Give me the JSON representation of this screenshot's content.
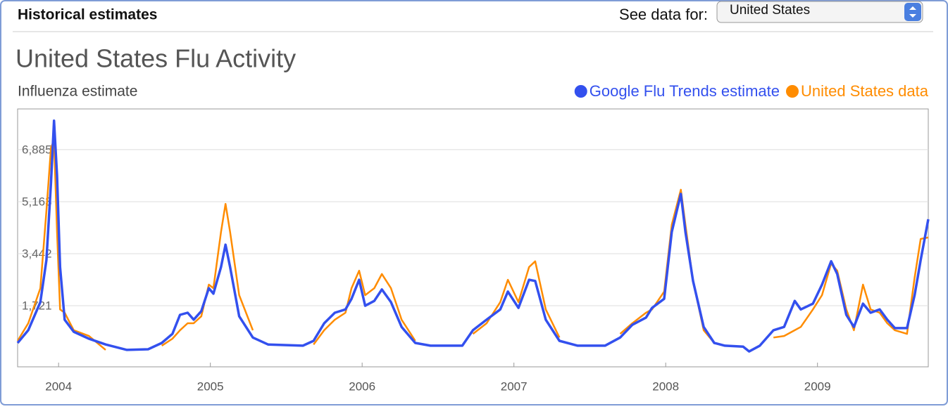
{
  "header": {
    "title": "Historical estimates",
    "see_data_label": "See data for:",
    "selected_region": "United States"
  },
  "chart_data": {
    "type": "line",
    "title": "United States Flu Activity",
    "y_label": "Influenza estimate",
    "x": [
      2003.73,
      2003.8,
      2003.88,
      2003.92,
      2003.95,
      2003.97,
      2003.99,
      2004.01,
      2004.04,
      2004.1,
      2004.2,
      2004.31,
      2004.45,
      2004.59,
      2004.68,
      2004.75,
      2004.8,
      2004.85,
      2004.89,
      2004.94,
      2004.99,
      2005.02,
      2005.07,
      2005.1,
      2005.13,
      2005.19,
      2005.28,
      2005.38,
      2005.61,
      2005.68,
      2005.75,
      2005.82,
      2005.89,
      2005.93,
      2005.98,
      2006.02,
      2006.08,
      2006.13,
      2006.19,
      2006.26,
      2006.35,
      2006.45,
      2006.66,
      2006.73,
      2006.82,
      2006.91,
      2006.96,
      2007.03,
      2007.1,
      2007.14,
      2007.21,
      2007.3,
      2007.42,
      2007.6,
      2007.7,
      2007.78,
      2007.87,
      2007.91,
      2007.99,
      2008.04,
      2008.1,
      2008.13,
      2008.18,
      2008.25,
      2008.32,
      2008.39,
      2008.51,
      2008.55,
      2008.62,
      2008.71,
      2008.78,
      2008.85,
      2008.89,
      2008.97,
      2009.03,
      2009.09,
      2009.13,
      2009.19,
      2009.24,
      2009.3,
      2009.35,
      2009.41,
      2009.46,
      2009.51,
      2009.59,
      2009.64,
      2009.68,
      2009.73
    ],
    "series": [
      {
        "name": "Google Flu Trends estimate",
        "color": "#3350ee",
        "values": [
          490,
          910,
          1840,
          3230,
          5790,
          7840,
          6020,
          3000,
          1260,
          860,
          630,
          440,
          260,
          280,
          490,
          790,
          1420,
          1490,
          1260,
          1540,
          2300,
          2120,
          3000,
          3740,
          3000,
          1370,
          670,
          440,
          400,
          560,
          1140,
          1490,
          1600,
          1950,
          2580,
          1720,
          1880,
          2260,
          1840,
          1020,
          490,
          400,
          400,
          910,
          1260,
          1600,
          2190,
          1650,
          2580,
          2540,
          1260,
          560,
          400,
          400,
          670,
          1090,
          1330,
          1650,
          1950,
          4160,
          5420,
          4160,
          2540,
          1020,
          490,
          400,
          370,
          210,
          400,
          910,
          1020,
          1880,
          1600,
          1790,
          2420,
          3190,
          2770,
          1420,
          1020,
          1790,
          1490,
          1600,
          1260,
          980,
          980,
          2070,
          3230,
          4580
        ]
      },
      {
        "name": "United States data",
        "color": "#ff8c00",
        "values": [
          560,
          1140,
          2300,
          4860,
          6950,
          7190,
          4160,
          1600,
          1490,
          910,
          720,
          260,
          null,
          null,
          400,
          630,
          910,
          1140,
          1140,
          1370,
          2420,
          2300,
          4160,
          5090,
          4160,
          2070,
          910,
          null,
          null,
          440,
          910,
          1260,
          1490,
          2300,
          2880,
          2070,
          2300,
          2770,
          2300,
          1260,
          560,
          null,
          null,
          790,
          1140,
          1840,
          2580,
          1840,
          3000,
          3190,
          1600,
          670,
          null,
          null,
          790,
          1140,
          1490,
          1600,
          2190,
          4400,
          5560,
          4400,
          2540,
          910,
          490,
          null,
          null,
          null,
          null,
          670,
          720,
          910,
          1020,
          1600,
          2070,
          3120,
          2880,
          1600,
          910,
          2420,
          1600,
          1490,
          1140,
          910,
          790,
          2650,
          3930,
          3980
        ]
      }
    ],
    "xlim": [
      2003.73,
      2009.73
    ],
    "xticks": [
      2004,
      2005,
      2006,
      2007,
      2008,
      2009
    ],
    "ylim": [
      -300,
      8230
    ],
    "yticks": [
      {
        "value": 1721,
        "label": "1,721"
      },
      {
        "value": 3442,
        "label": "3,442"
      },
      {
        "value": 5163,
        "label": "5,163"
      },
      {
        "value": 6885,
        "label": "6,885"
      }
    ],
    "grid": true
  }
}
